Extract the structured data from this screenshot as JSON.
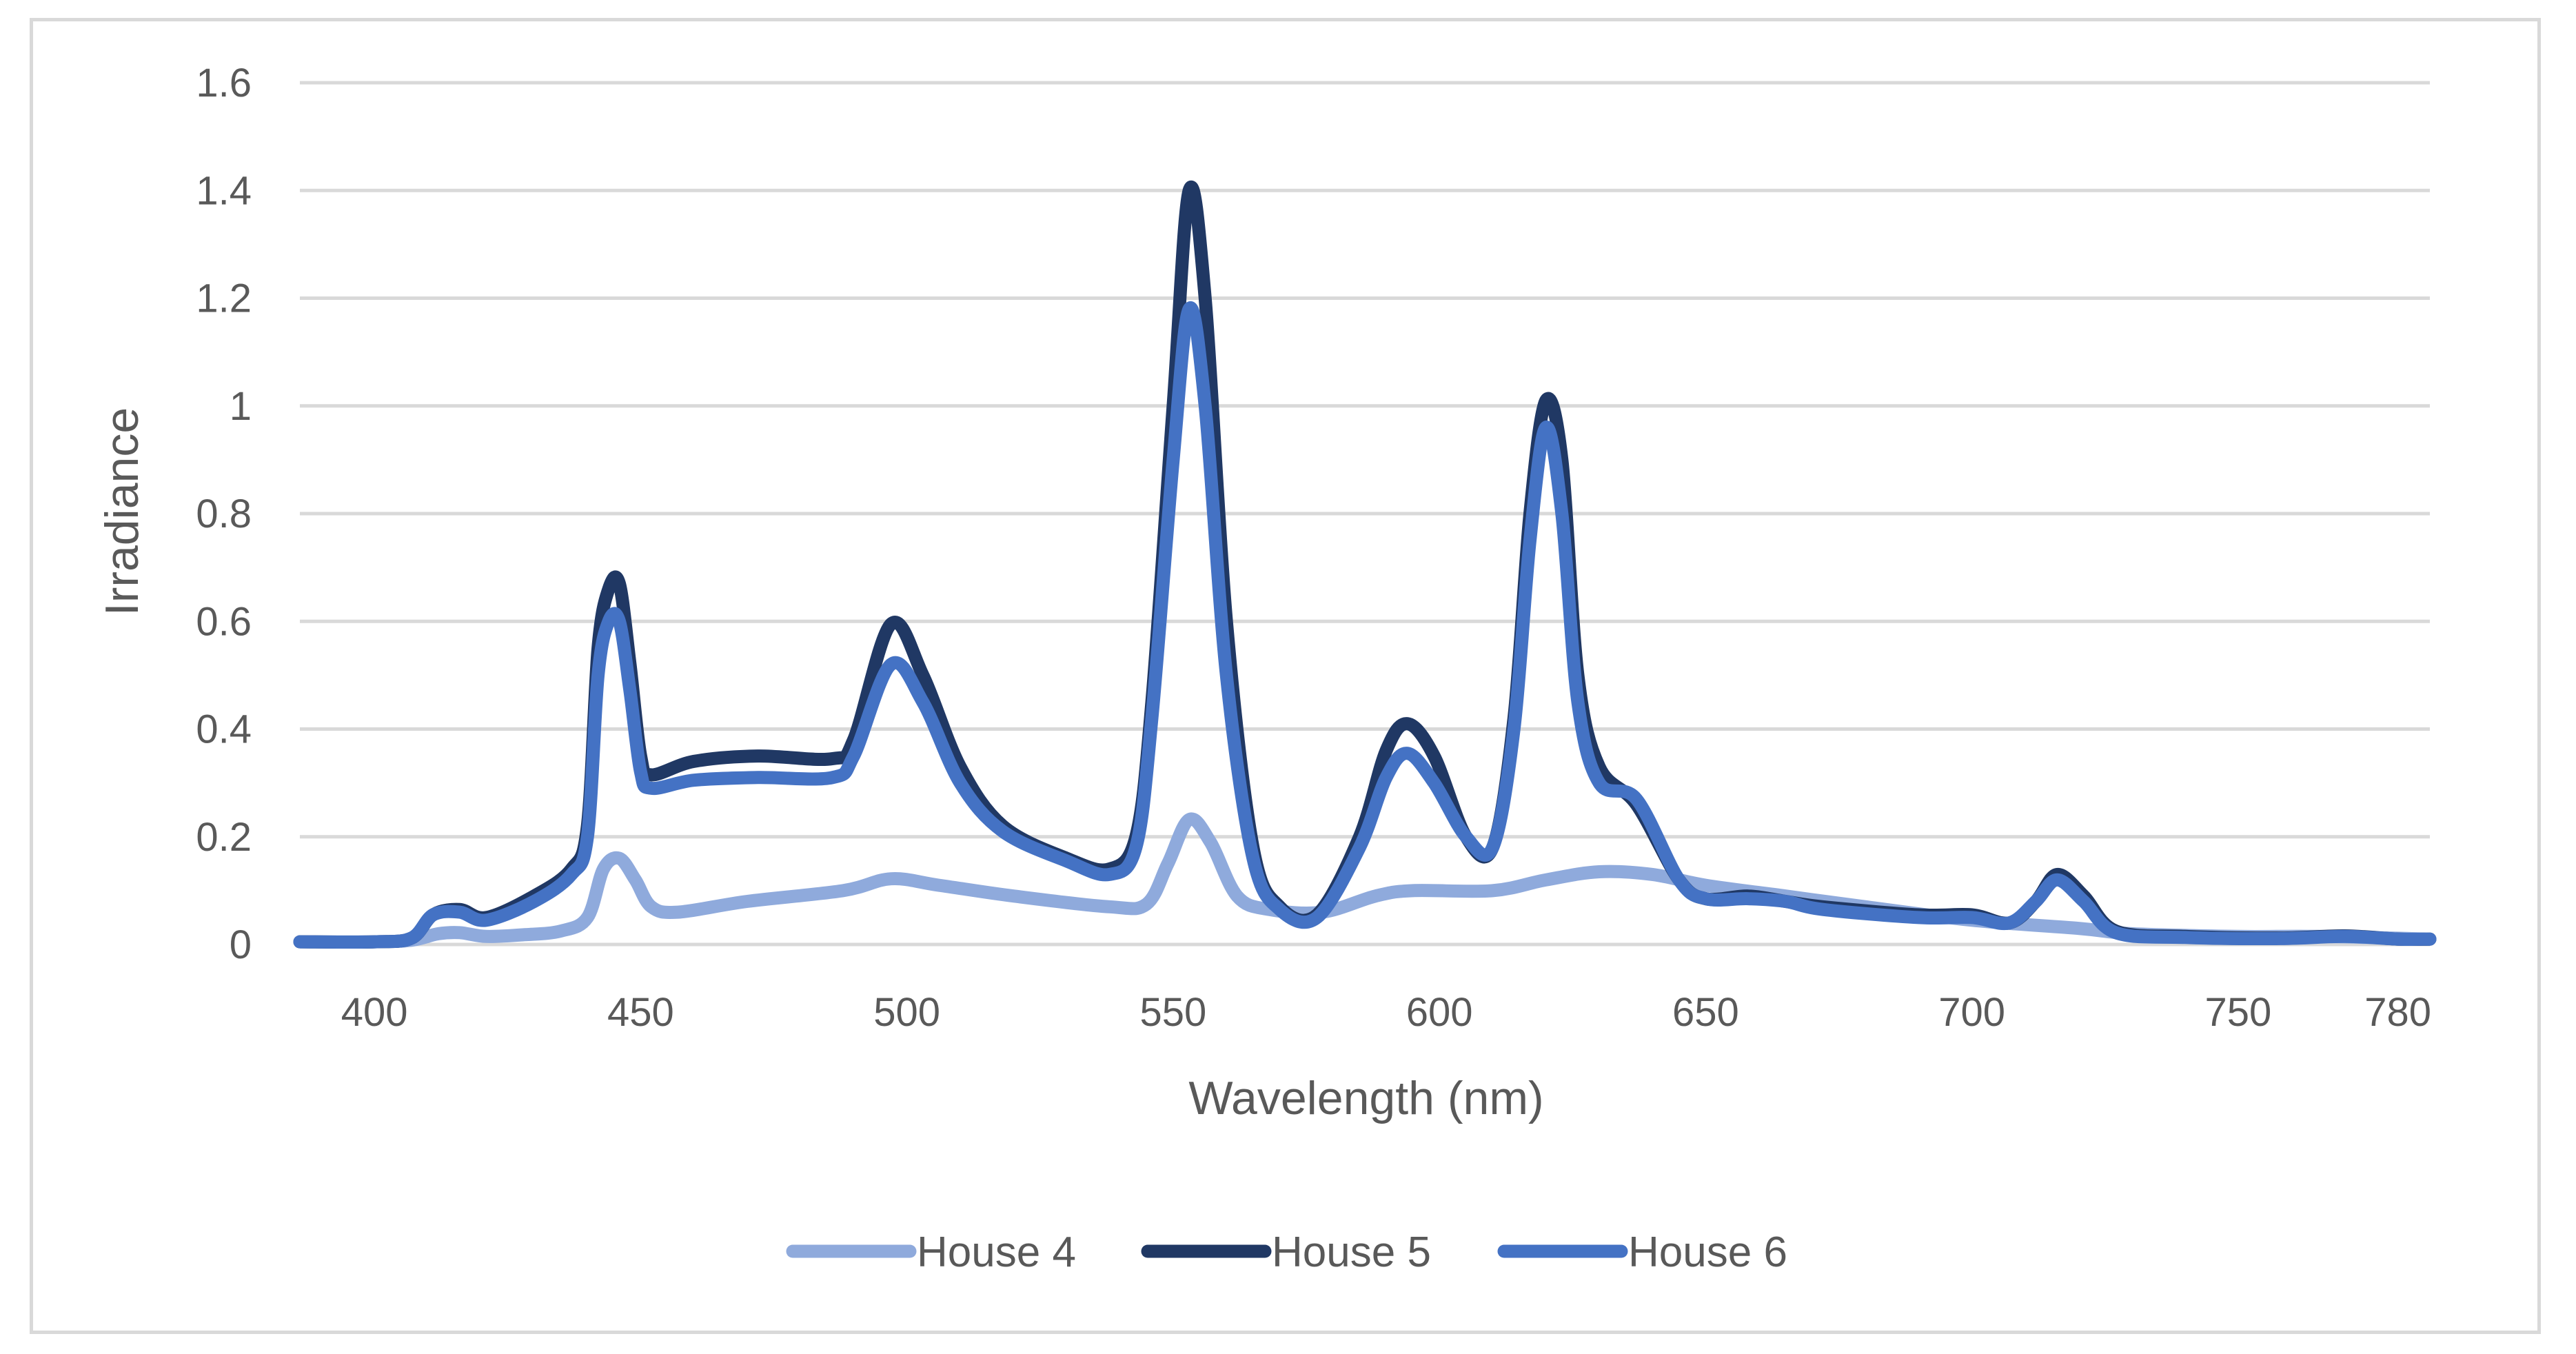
{
  "chart_data": {
    "type": "line",
    "title": "",
    "xlabel": "Wavelength (nm)",
    "ylabel": "Irradiance",
    "xlim": [
      386,
      786
    ],
    "ylim": [
      0,
      1.6
    ],
    "x_ticks": [
      400,
      450,
      500,
      550,
      600,
      650,
      700,
      750,
      780
    ],
    "x_tick_labels": [
      "400",
      "450",
      "500",
      "550",
      "600",
      "650",
      "700",
      "750",
      "780"
    ],
    "y_ticks": [
      0,
      0.2,
      0.4,
      0.6,
      0.8,
      1,
      1.2,
      1.4,
      1.6
    ],
    "y_tick_labels": [
      "0",
      "0.2",
      "0.4",
      "0.6",
      "0.8",
      "1",
      "1.2",
      "1.4",
      "1.6"
    ],
    "grid": true,
    "legend_position": "bottom",
    "series": [
      {
        "name": "House 4",
        "color": "#8faadc",
        "points": [
          [
            386,
            0.005
          ],
          [
            400,
            0.005
          ],
          [
            407,
            0.008
          ],
          [
            412,
            0.02
          ],
          [
            416,
            0.022
          ],
          [
            421,
            0.015
          ],
          [
            428,
            0.018
          ],
          [
            435,
            0.025
          ],
          [
            440,
            0.05
          ],
          [
            443,
            0.14
          ],
          [
            446,
            0.16
          ],
          [
            449,
            0.12
          ],
          [
            452,
            0.07
          ],
          [
            457,
            0.06
          ],
          [
            470,
            0.08
          ],
          [
            488,
            0.1
          ],
          [
            497,
            0.122
          ],
          [
            506,
            0.11
          ],
          [
            520,
            0.09
          ],
          [
            538,
            0.07
          ],
          [
            545,
            0.075
          ],
          [
            549,
            0.15
          ],
          [
            553,
            0.232
          ],
          [
            557,
            0.19
          ],
          [
            562,
            0.09
          ],
          [
            568,
            0.065
          ],
          [
            578,
            0.06
          ],
          [
            588,
            0.09
          ],
          [
            595,
            0.1
          ],
          [
            610,
            0.1
          ],
          [
            620,
            0.12
          ],
          [
            630,
            0.135
          ],
          [
            640,
            0.13
          ],
          [
            650,
            0.11
          ],
          [
            665,
            0.09
          ],
          [
            680,
            0.07
          ],
          [
            700,
            0.045
          ],
          [
            720,
            0.03
          ],
          [
            730,
            0.02
          ],
          [
            750,
            0.015
          ],
          [
            765,
            0.015
          ],
          [
            786,
            0.01
          ]
        ]
      },
      {
        "name": "House 5",
        "color": "#203864",
        "points": [
          [
            386,
            0.005
          ],
          [
            400,
            0.005
          ],
          [
            407,
            0.012
          ],
          [
            411,
            0.055
          ],
          [
            416,
            0.065
          ],
          [
            421,
            0.05
          ],
          [
            430,
            0.09
          ],
          [
            437,
            0.14
          ],
          [
            440,
            0.22
          ],
          [
            442,
            0.55
          ],
          [
            444,
            0.66
          ],
          [
            446,
            0.67
          ],
          [
            448,
            0.52
          ],
          [
            450,
            0.35
          ],
          [
            452,
            0.315
          ],
          [
            460,
            0.34
          ],
          [
            472,
            0.35
          ],
          [
            486,
            0.345
          ],
          [
            490,
            0.38
          ],
          [
            497,
            0.595
          ],
          [
            503,
            0.5
          ],
          [
            510,
            0.33
          ],
          [
            518,
            0.22
          ],
          [
            530,
            0.16
          ],
          [
            538,
            0.14
          ],
          [
            543,
            0.2
          ],
          [
            546,
            0.45
          ],
          [
            550,
            1.0
          ],
          [
            553,
            1.4
          ],
          [
            556,
            1.2
          ],
          [
            560,
            0.6
          ],
          [
            565,
            0.18
          ],
          [
            570,
            0.07
          ],
          [
            577,
            0.055
          ],
          [
            585,
            0.2
          ],
          [
            590,
            0.36
          ],
          [
            594,
            0.41
          ],
          [
            599,
            0.35
          ],
          [
            605,
            0.2
          ],
          [
            610,
            0.18
          ],
          [
            614,
            0.42
          ],
          [
            617,
            0.8
          ],
          [
            620,
            1.01
          ],
          [
            623,
            0.9
          ],
          [
            626,
            0.5
          ],
          [
            630,
            0.33
          ],
          [
            637,
            0.26
          ],
          [
            645,
            0.12
          ],
          [
            650,
            0.085
          ],
          [
            658,
            0.09
          ],
          [
            665,
            0.08
          ],
          [
            672,
            0.07
          ],
          [
            690,
            0.055
          ],
          [
            700,
            0.055
          ],
          [
            707,
            0.04
          ],
          [
            712,
            0.08
          ],
          [
            716,
            0.13
          ],
          [
            721,
            0.09
          ],
          [
            727,
            0.025
          ],
          [
            740,
            0.015
          ],
          [
            758,
            0.012
          ],
          [
            770,
            0.016
          ],
          [
            780,
            0.01
          ],
          [
            786,
            0.01
          ]
        ]
      },
      {
        "name": "House 6",
        "color": "#4472c4",
        "points": [
          [
            386,
            0.005
          ],
          [
            400,
            0.005
          ],
          [
            407,
            0.012
          ],
          [
            411,
            0.055
          ],
          [
            416,
            0.06
          ],
          [
            421,
            0.045
          ],
          [
            430,
            0.08
          ],
          [
            437,
            0.13
          ],
          [
            440,
            0.2
          ],
          [
            442,
            0.5
          ],
          [
            444,
            0.6
          ],
          [
            446,
            0.6
          ],
          [
            448,
            0.47
          ],
          [
            450,
            0.32
          ],
          [
            452,
            0.29
          ],
          [
            460,
            0.305
          ],
          [
            472,
            0.31
          ],
          [
            486,
            0.31
          ],
          [
            490,
            0.35
          ],
          [
            497,
            0.52
          ],
          [
            503,
            0.45
          ],
          [
            510,
            0.3
          ],
          [
            518,
            0.21
          ],
          [
            530,
            0.155
          ],
          [
            538,
            0.13
          ],
          [
            543,
            0.18
          ],
          [
            546,
            0.42
          ],
          [
            550,
            0.9
          ],
          [
            553,
            1.18
          ],
          [
            556,
            1.0
          ],
          [
            560,
            0.5
          ],
          [
            565,
            0.16
          ],
          [
            570,
            0.065
          ],
          [
            577,
            0.05
          ],
          [
            585,
            0.18
          ],
          [
            590,
            0.31
          ],
          [
            594,
            0.355
          ],
          [
            599,
            0.3
          ],
          [
            605,
            0.2
          ],
          [
            610,
            0.18
          ],
          [
            614,
            0.4
          ],
          [
            617,
            0.75
          ],
          [
            620,
            0.96
          ],
          [
            623,
            0.8
          ],
          [
            626,
            0.45
          ],
          [
            630,
            0.3
          ],
          [
            637,
            0.27
          ],
          [
            645,
            0.12
          ],
          [
            650,
            0.085
          ],
          [
            658,
            0.085
          ],
          [
            665,
            0.08
          ],
          [
            672,
            0.065
          ],
          [
            690,
            0.05
          ],
          [
            700,
            0.05
          ],
          [
            707,
            0.04
          ],
          [
            712,
            0.08
          ],
          [
            716,
            0.12
          ],
          [
            721,
            0.08
          ],
          [
            727,
            0.022
          ],
          [
            740,
            0.013
          ],
          [
            758,
            0.011
          ],
          [
            770,
            0.015
          ],
          [
            780,
            0.01
          ],
          [
            786,
            0.01
          ]
        ]
      }
    ]
  }
}
